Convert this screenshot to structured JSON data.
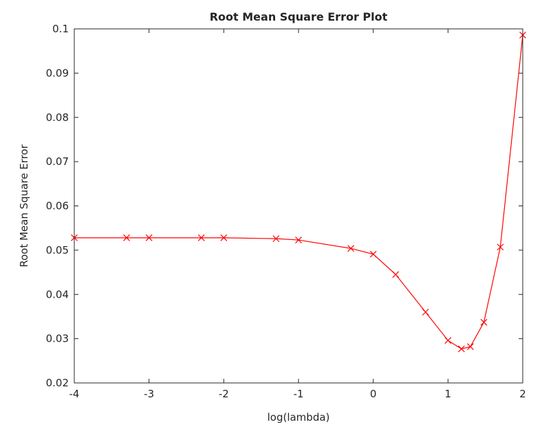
{
  "chart_data": {
    "type": "line",
    "title": "Root Mean Square Error Plot",
    "xlabel": "log(lambda)",
    "ylabel": "Root Mean Square Error",
    "xlim": [
      -4,
      2
    ],
    "ylim": [
      0.02,
      0.1
    ],
    "x_ticks": [
      -4,
      -3,
      -2,
      -1,
      0,
      1,
      2
    ],
    "x_tick_labels": [
      "-4",
      "-3",
      "-2",
      "-1",
      "0",
      "1",
      "2"
    ],
    "y_ticks": [
      0.02,
      0.03,
      0.04,
      0.05,
      0.06,
      0.07,
      0.08,
      0.09,
      0.1
    ],
    "y_tick_labels": [
      "0.02",
      "0.03",
      "0.04",
      "0.05",
      "0.06",
      "0.07",
      "0.08",
      "0.09",
      "0.1"
    ],
    "grid": false,
    "marker": "x",
    "color": "#ff0000",
    "series": [
      {
        "x": [
          -4,
          -3.3,
          -3,
          -2.3,
          -2,
          -1.3,
          -1,
          -0.3,
          0,
          0.3,
          0.7,
          1,
          1.18,
          1.3,
          1.48,
          1.7,
          2
        ],
        "y": [
          0.0528,
          0.0528,
          0.0528,
          0.0528,
          0.0528,
          0.0526,
          0.0523,
          0.0504,
          0.0491,
          0.0445,
          0.036,
          0.0296,
          0.0277,
          0.0282,
          0.0337,
          0.0507,
          0.0986
        ]
      }
    ]
  }
}
